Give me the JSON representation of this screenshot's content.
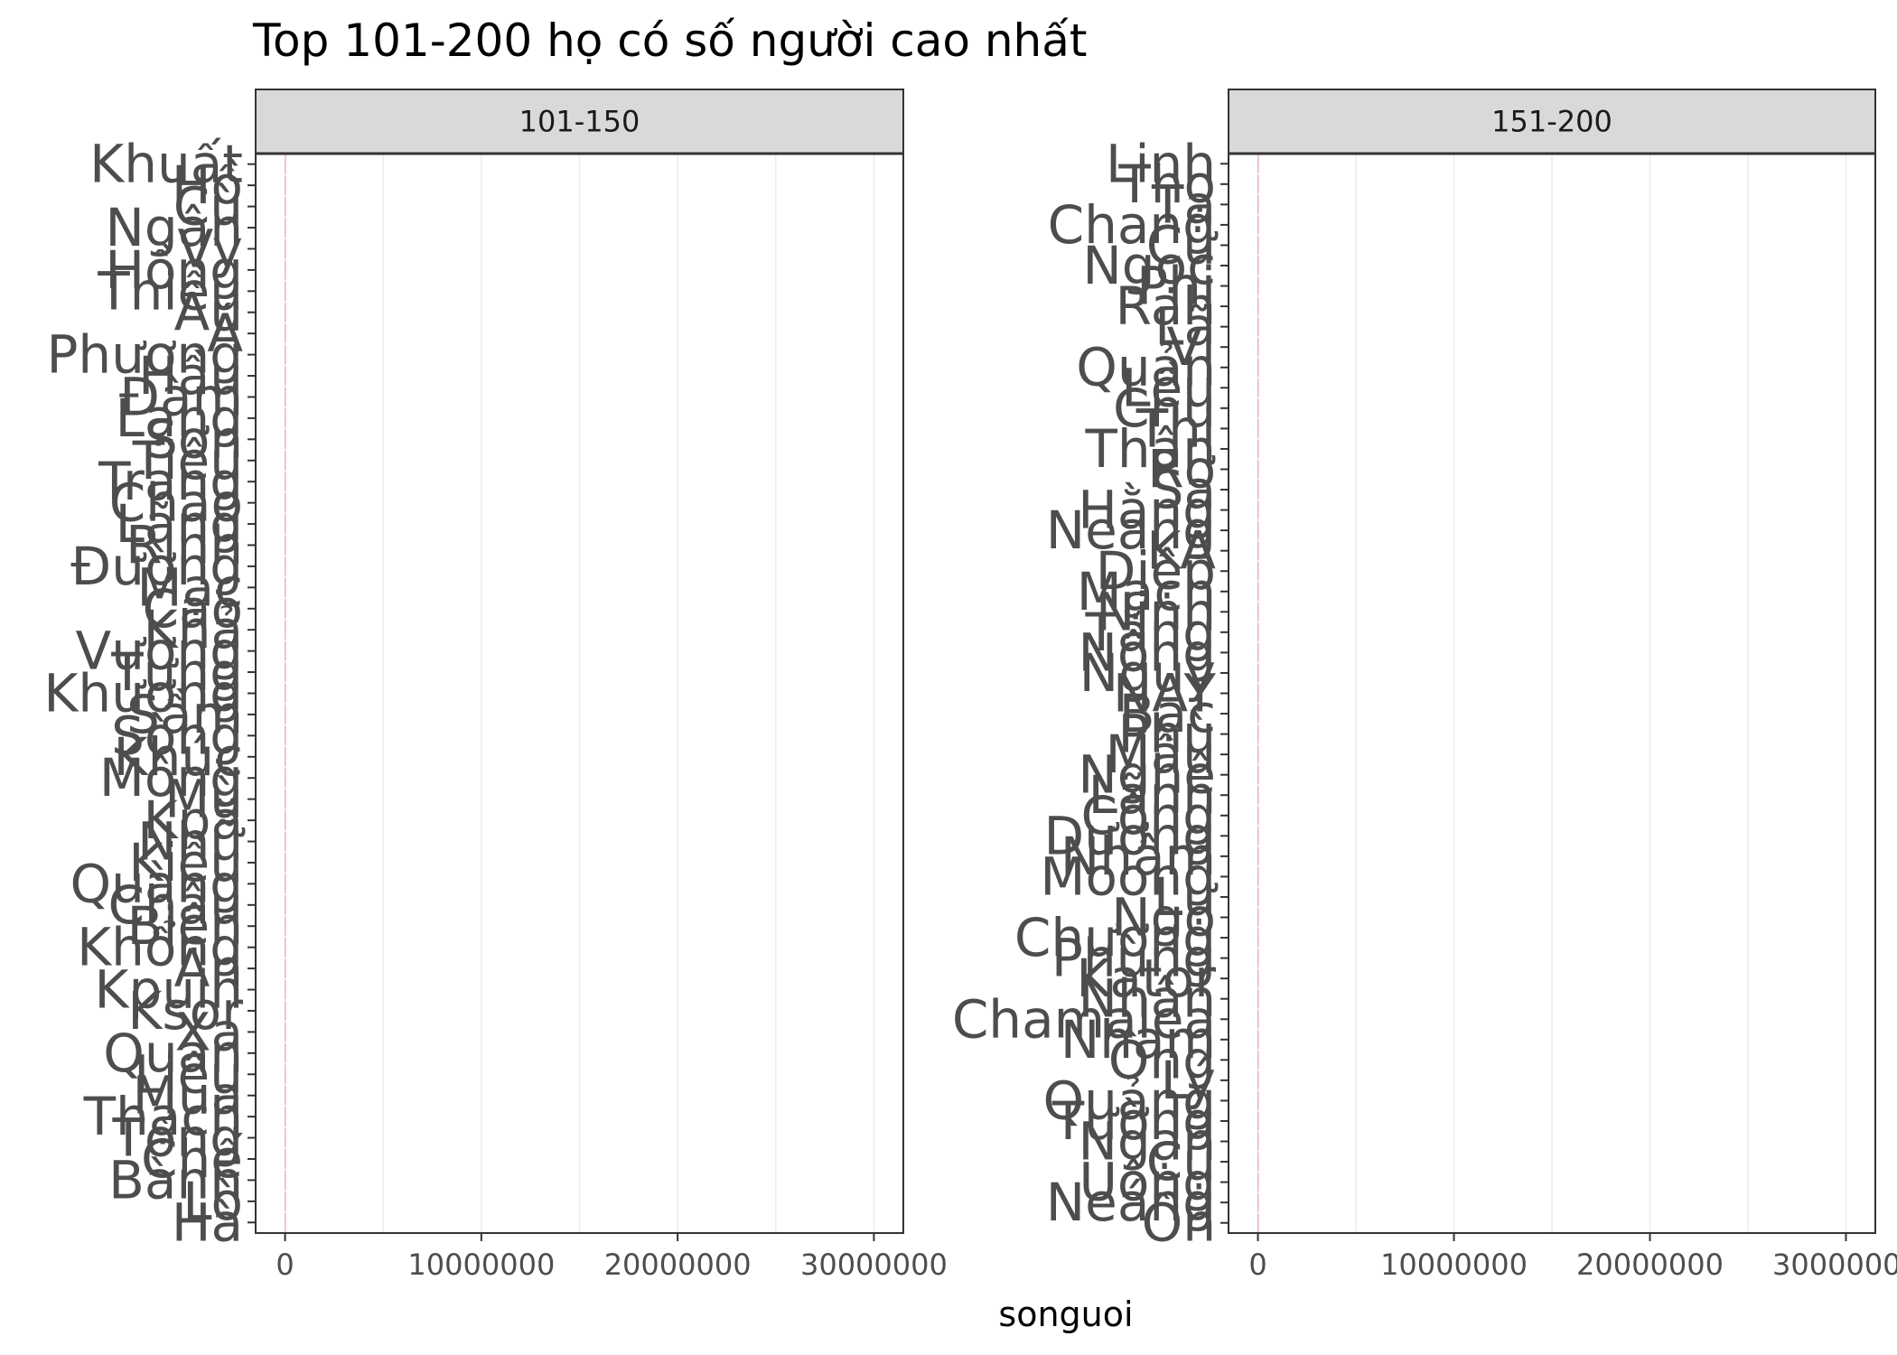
{
  "chart_data": {
    "type": "bar",
    "title": "Top 101-200 họ có số người cao nhất",
    "xlabel": "songuoi",
    "ylabel": "",
    "xlim": [
      -1500000,
      31500000
    ],
    "x_ticks": [
      0,
      10000000,
      20000000,
      30000000
    ],
    "x_tick_labels": [
      "0",
      "10000000",
      "20000000",
      "30000000"
    ],
    "grid": true,
    "orientation": "horizontal",
    "panels": [
      {
        "strip": "101-150",
        "categories": [
          "Khuất",
          "Hồ",
          "Cù",
          "Ngân",
          "Vy",
          "Hồng",
          "Thiều",
          "Âu",
          "Á",
          "Phương",
          "Hầu",
          "Đàm",
          "Lạng",
          "Sơn",
          "Tiêu",
          "Trang",
          "Chao",
          "Lãng",
          "Rịnh",
          "Đường",
          "Mạc",
          "Cao",
          "Khả",
          "Vương",
          "Tưng",
          "Khương",
          "Sầm",
          "Sòng",
          "Khúc",
          "Mông",
          "Mù",
          "Kpă",
          "Nhữ",
          "Kiều",
          "Quàng",
          "Châu",
          "Biện",
          "Khổng",
          "Ân",
          "Kpuih",
          "Ksor",
          "Xa",
          "Quan",
          "Liêu",
          "Mua",
          "Thạch",
          "Tống",
          "Chế",
          "Bành",
          "Lò",
          "Hà"
        ],
        "values": [
          21000,
          21000,
          20000,
          20000,
          20000,
          19000,
          19000,
          19000,
          18000,
          18000,
          18000,
          17000,
          17000,
          17000,
          17000,
          16000,
          16000,
          16000,
          16000,
          15000,
          15000,
          15000,
          15000,
          14000,
          14000,
          14000,
          14000,
          13000,
          13000,
          13000,
          13000,
          12000,
          12000,
          12000,
          12000,
          11000,
          11000,
          11000,
          11000,
          10000,
          10000,
          10000,
          10000,
          9000,
          9000,
          9000,
          9000,
          8000,
          8000,
          8000,
          8000
        ]
      },
      {
        "strip": "151-200",
        "categories": [
          "Linh",
          "Thọ",
          "Tạ",
          "Chang",
          "Cư",
          "Ngọc",
          "Phi",
          "Rah",
          "Lã",
          "Vi",
          "Quản",
          "Lều",
          "Chu",
          "Thi",
          "Thân",
          "Rơ",
          "Sa",
          "Hằng",
          "Neang",
          "KA",
          "Diệp",
          "Mạch",
          "Ninh",
          "Tăng",
          "Nông",
          "Nguy",
          "NAY",
          "Bạc",
          "Phù",
          "Mẫu",
          "Nghê",
          "Lãnh",
          "Công",
          "Dương",
          "Nhâm",
          "Moong",
          "Lự",
          "Ngo",
          "Chương",
          "Phùng",
          "Kator",
          "Nhân",
          "Chamalea",
          "Nham",
          "Ông",
          "Lý",
          "Quảng",
          "Tường",
          "Ngạn",
          "Cụ",
          "Uông",
          "Neáng",
          "Ôn"
        ],
        "values": [
          8000,
          8000,
          8000,
          7900,
          7900,
          7800,
          7800,
          7700,
          7700,
          7600,
          7600,
          7500,
          7500,
          7400,
          7400,
          7300,
          7300,
          7200,
          7200,
          7100,
          7100,
          7000,
          7000,
          6900,
          6900,
          6800,
          6800,
          6700,
          6700,
          6600,
          6600,
          6500,
          6500,
          6400,
          6400,
          6300,
          6300,
          6200,
          6200,
          6100,
          6100,
          6000,
          6000,
          5900,
          5900,
          5800,
          5800,
          5700,
          5700,
          5600,
          5600,
          5500,
          5500
        ]
      }
    ],
    "colors": {
      "bar": "#e06666",
      "strip_fill": "#d9d9d9",
      "panel_border": "#333333",
      "grid": "#ebebeb",
      "tick": "#333333"
    }
  }
}
